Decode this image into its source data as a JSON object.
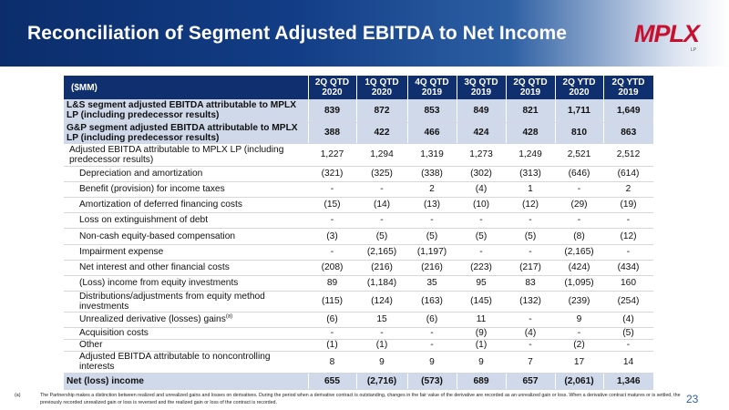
{
  "header": {
    "title": "Reconciliation of Segment Adjusted EBITDA to Net Income",
    "logo_text": "MPLX",
    "logo_sub": "LP"
  },
  "table": {
    "columns": [
      "($MM)",
      "2Q QTD 2020",
      "1Q QTD 2020",
      "4Q QTD 2019",
      "3Q QTD 2019",
      "2Q QTD 2019",
      "2Q YTD 2020",
      "2Q YTD 2019"
    ],
    "rows": [
      {
        "label": "L&S segment adjusted EBITDA attributable to MPLX LP (including predecessor results)",
        "values": [
          "839",
          "872",
          "853",
          "849",
          "821",
          "1,711",
          "1,649"
        ]
      },
      {
        "label": "G&P segment adjusted EBITDA attributable to MPLX LP (including predecessor results)",
        "values": [
          "388",
          "422",
          "466",
          "424",
          "428",
          "810",
          "863"
        ]
      },
      {
        "label": "Adjusted EBITDA attributable to MPLX LP (including predecessor results)",
        "values": [
          "1,227",
          "1,294",
          "1,319",
          "1,273",
          "1,249",
          "2,521",
          "2,512"
        ]
      },
      {
        "label": "Depreciation and amortization",
        "values": [
          "(321)",
          "(325)",
          "(338)",
          "(302)",
          "(313)",
          "(646)",
          "(614)"
        ]
      },
      {
        "label": "Benefit (provision) for income taxes",
        "values": [
          "-",
          "-",
          "2",
          "(4)",
          "1",
          "-",
          "2"
        ]
      },
      {
        "label": "Amortization of deferred financing costs",
        "values": [
          "(15)",
          "(14)",
          "(13)",
          "(10)",
          "(12)",
          "(29)",
          "(19)"
        ]
      },
      {
        "label": "Loss on extinguishment of debt",
        "values": [
          "-",
          "-",
          "-",
          "-",
          "-",
          "-",
          "-"
        ]
      },
      {
        "label": "Non-cash equity-based compensation",
        "values": [
          "(3)",
          "(5)",
          "(5)",
          "(5)",
          "(5)",
          "(8)",
          "(12)"
        ]
      },
      {
        "label": "Impairment expense",
        "values": [
          "-",
          "(2,165)",
          "(1,197)",
          "-",
          "-",
          "(2,165)",
          "-"
        ]
      },
      {
        "label": "Net interest and other financial costs",
        "values": [
          "(208)",
          "(216)",
          "(216)",
          "(223)",
          "(217)",
          "(424)",
          "(434)"
        ]
      },
      {
        "label": "(Loss) income from equity investments",
        "values": [
          "89",
          "(1,184)",
          "35",
          "95",
          "83",
          "(1,095)",
          "160"
        ]
      },
      {
        "label": "Distributions/adjustments from equity method investments",
        "values": [
          "(115)",
          "(124)",
          "(163)",
          "(145)",
          "(132)",
          "(239)",
          "(254)"
        ]
      },
      {
        "label": "Unrealized derivative (losses) gains",
        "sup": "(a)",
        "values": [
          "(6)",
          "15",
          "(6)",
          "11",
          "-",
          "9",
          "(4)"
        ]
      },
      {
        "label": "Acquisition costs",
        "values": [
          "-",
          "-",
          "-",
          "(9)",
          "(4)",
          "-",
          "(5)"
        ]
      },
      {
        "label": "Other",
        "values": [
          "(1)",
          "(1)",
          "-",
          "(1)",
          "-",
          "(2)",
          "-"
        ]
      },
      {
        "label": "Adjusted EBITDA attributable to noncontrolling interests",
        "values": [
          "8",
          "9",
          "9",
          "9",
          "7",
          "17",
          "14"
        ]
      },
      {
        "label": "Net (loss) income",
        "values": [
          "655",
          "(2,716)",
          "(573)",
          "689",
          "657",
          "(2,061)",
          "1,346"
        ]
      }
    ]
  },
  "footnote": {
    "mark": "(a)",
    "text": "The Partnership makes a distinction between realized and unrealized gains and losses on derivatives. During the period when a derivative contract is outstanding, changes in the fair value of the derivative are recorded as an unrealized gain or loss. When a derivative contract matures or is settled, the previously recorded unrealized gain or loss is reversed and the realized gain or loss of the contract is recorded."
  },
  "page_number": "23",
  "colors": {
    "header_dark": "#0b2d6b",
    "table_header": "#0f2f6e",
    "highlight_row": "#cfd9ea",
    "logo_red": "#c8102e"
  }
}
